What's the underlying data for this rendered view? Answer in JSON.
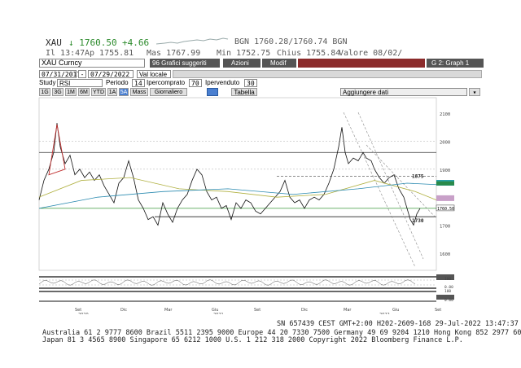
{
  "quote": {
    "ticker": "XAU",
    "price": "↓ 1760.50",
    "change": "+4.66",
    "bid_ask": "BGN 1760.28/1760.74 BGN",
    "time": "Il 13:47",
    "open": "Ap 1755.81",
    "high": "Mas 1767.99",
    "low": "Min 1752.75",
    "close": "Chius 1755.84",
    "value_date": "Valore 08/02/"
  },
  "toolbar": {
    "security": "XAU Curncy",
    "suggested": "96 Grafici suggeriti",
    "actions": "Azioni",
    "modify": "Modif",
    "graph": "G 2: Graph 1",
    "start_date": "07/31/2017",
    "end_date": "07/29/2022",
    "currency": "Val locale",
    "study_label": "Study",
    "study_value": "RSI",
    "period_label": "Periodo",
    "period_value": "14",
    "overbought_label": "Ipercomprato",
    "overbought_value": "70",
    "oversold_label": "Ipervenduto",
    "oversold_value": "30",
    "ranges": [
      "1G",
      "3G",
      "1M",
      "6M",
      "YTD",
      "1A",
      "5A",
      "Mass",
      "Giornaliero"
    ],
    "table": "Tabella",
    "add_data": "Aggiungere dati"
  },
  "chart": {
    "y_ticks": [
      "2100",
      "2000",
      "1900",
      "1800",
      "1700",
      "1600"
    ],
    "x_ticks": [
      "Set",
      "Dic",
      "Mar",
      "Giu",
      "Set",
      "Dic",
      "Mar",
      "Giu",
      "Set"
    ],
    "x_years": [
      "2020",
      "2021",
      "2022"
    ],
    "label_1875": "1875",
    "label_1730": "1730",
    "price_tag": "1760.50",
    "rsi_ticks": [
      "100",
      "0.00",
      "100",
      "0.00"
    ]
  },
  "footer": {
    "status": "SN 657439 CEST GMT+2:00 H202-2609-168 29-Jul-2022 13:47:37",
    "line1": "Australia 61 2 9777 8600 Brazil 5511 2395 9000 Europe 44 20 7330 7500 Germany 49 69 9204 1210 Hong Kong 852 2977 6000",
    "line2": "Japan 81 3 4565 8900          Singapore 65 6212 1000        U.S. 1 212 318 2000         Copyright 2022 Bloomberg Finance L.P."
  }
}
